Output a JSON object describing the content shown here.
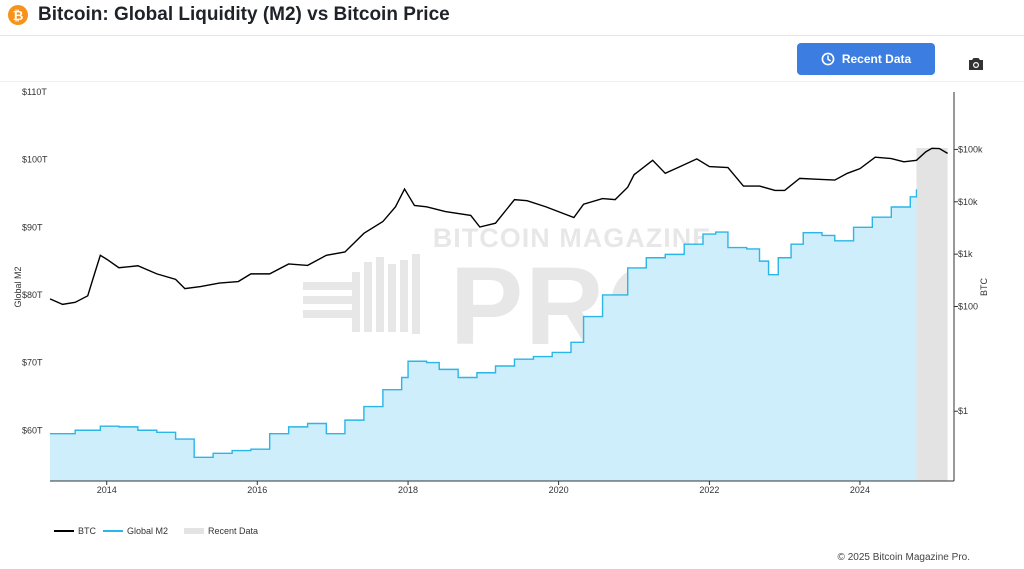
{
  "header": {
    "logo_glyph": "₿",
    "title": "Bitcoin: Global Liquidity (M2) vs Bitcoin Price"
  },
  "toolbar": {
    "recent_button_label": "Recent Data",
    "camera_icon": "camera-icon"
  },
  "footer": {
    "copyright": "© 2025 Bitcoin Magazine Pro."
  },
  "colors": {
    "btc_line": "#000000",
    "m2_line": "#2bb5e8",
    "m2_fill": "#cdeefa",
    "recent_shade": "#e3e3e3",
    "button": "#3b7de0",
    "logo": "#f7931a"
  },
  "chart_data": {
    "type": "line",
    "title": "Bitcoin: Global Liquidity (M2) vs Bitcoin Price",
    "left_axis": {
      "label": "Global M2",
      "ticks": [
        {
          "value": 60,
          "label": "$60T"
        },
        {
          "value": 70,
          "label": "$70T"
        },
        {
          "value": 80,
          "label": "$80T"
        },
        {
          "value": 90,
          "label": "$90T"
        },
        {
          "value": 100,
          "label": "$100T"
        },
        {
          "value": 110,
          "label": "$110T"
        }
      ],
      "range": [
        52.5,
        110
      ]
    },
    "right_axis": {
      "label": "BTC",
      "scale": "log",
      "ticks": [
        {
          "value": 1,
          "label": "$1"
        },
        {
          "value": 100,
          "label": "$100"
        },
        {
          "value": 1000,
          "label": "$1k"
        },
        {
          "value": 10000,
          "label": "$10k"
        },
        {
          "value": 100000,
          "label": "$100k"
        }
      ],
      "range": [
        0.0465,
        1250000
      ]
    },
    "x_axis": {
      "type": "date",
      "ticks": [
        "2014",
        "2016",
        "2018",
        "2020",
        "2022",
        "2024"
      ],
      "range": [
        "2013-04-01",
        "2025-04-01"
      ]
    },
    "recent_data_range": [
      "2024-10-01",
      "2025-03-01"
    ],
    "grid": false,
    "legend_position": "bottom-left",
    "series": [
      {
        "name": "BTC",
        "axis": "right",
        "points": [
          [
            "2013-04-01",
            140
          ],
          [
            "2013-06-01",
            110
          ],
          [
            "2013-08-01",
            120
          ],
          [
            "2013-10-01",
            160
          ],
          [
            "2013-11-01",
            400
          ],
          [
            "2013-12-01",
            950
          ],
          [
            "2014-01-01",
            800
          ],
          [
            "2014-03-01",
            550
          ],
          [
            "2014-06-01",
            600
          ],
          [
            "2014-09-01",
            420
          ],
          [
            "2014-12-01",
            330
          ],
          [
            "2015-01-15",
            220
          ],
          [
            "2015-04-01",
            240
          ],
          [
            "2015-07-01",
            280
          ],
          [
            "2015-10-01",
            300
          ],
          [
            "2015-12-01",
            420
          ],
          [
            "2016-03-01",
            420
          ],
          [
            "2016-06-01",
            650
          ],
          [
            "2016-09-01",
            610
          ],
          [
            "2016-12-01",
            950
          ],
          [
            "2017-03-01",
            1100
          ],
          [
            "2017-06-01",
            2500
          ],
          [
            "2017-09-01",
            4200
          ],
          [
            "2017-11-01",
            8000
          ],
          [
            "2017-12-15",
            17500
          ],
          [
            "2018-02-01",
            8500
          ],
          [
            "2018-04-01",
            8000
          ],
          [
            "2018-07-01",
            6500
          ],
          [
            "2018-11-01",
            5500
          ],
          [
            "2018-12-15",
            3300
          ],
          [
            "2019-03-01",
            3900
          ],
          [
            "2019-06-01",
            11000
          ],
          [
            "2019-08-01",
            10500
          ],
          [
            "2019-11-01",
            8000
          ],
          [
            "2020-03-15",
            5000
          ],
          [
            "2020-05-01",
            9000
          ],
          [
            "2020-08-01",
            11500
          ],
          [
            "2020-10-01",
            11000
          ],
          [
            "2020-12-01",
            19000
          ],
          [
            "2021-01-01",
            33000
          ],
          [
            "2021-04-01",
            62000
          ],
          [
            "2021-06-01",
            35000
          ],
          [
            "2021-08-01",
            45000
          ],
          [
            "2021-11-01",
            66000
          ],
          [
            "2022-01-01",
            47000
          ],
          [
            "2022-04-01",
            45000
          ],
          [
            "2022-06-15",
            20000
          ],
          [
            "2022-09-01",
            20000
          ],
          [
            "2022-11-15",
            16500
          ],
          [
            "2023-01-01",
            16500
          ],
          [
            "2023-03-15",
            28000
          ],
          [
            "2023-06-01",
            27000
          ],
          [
            "2023-09-01",
            26000
          ],
          [
            "2023-11-01",
            35000
          ],
          [
            "2024-01-01",
            43000
          ],
          [
            "2024-03-15",
            71000
          ],
          [
            "2024-06-01",
            67000
          ],
          [
            "2024-08-01",
            58000
          ],
          [
            "2024-10-01",
            62000
          ],
          [
            "2024-11-15",
            90000
          ],
          [
            "2024-12-15",
            105000
          ],
          [
            "2025-01-20",
            104000
          ],
          [
            "2025-03-01",
            84000
          ]
        ]
      },
      {
        "name": "Global M2",
        "axis": "left",
        "points": [
          [
            "2013-04-01",
            59.5
          ],
          [
            "2013-08-01",
            60.0
          ],
          [
            "2013-12-01",
            60.6
          ],
          [
            "2014-03-01",
            60.5
          ],
          [
            "2014-06-01",
            60.0
          ],
          [
            "2014-09-01",
            59.7
          ],
          [
            "2014-12-01",
            58.7
          ],
          [
            "2015-03-01",
            56.0
          ],
          [
            "2015-06-01",
            56.6
          ],
          [
            "2015-09-01",
            57.0
          ],
          [
            "2015-12-01",
            57.2
          ],
          [
            "2016-03-01",
            59.5
          ],
          [
            "2016-06-01",
            60.5
          ],
          [
            "2016-09-01",
            61.0
          ],
          [
            "2016-12-01",
            59.5
          ],
          [
            "2017-03-01",
            61.5
          ],
          [
            "2017-06-01",
            63.5
          ],
          [
            "2017-09-01",
            66.0
          ],
          [
            "2017-12-01",
            67.8
          ],
          [
            "2018-01-01",
            70.2
          ],
          [
            "2018-04-01",
            70.0
          ],
          [
            "2018-06-01",
            69.0
          ],
          [
            "2018-09-01",
            67.8
          ],
          [
            "2018-12-01",
            68.5
          ],
          [
            "2019-03-01",
            69.5
          ],
          [
            "2019-06-01",
            70.5
          ],
          [
            "2019-09-01",
            70.9
          ],
          [
            "2019-12-01",
            71.5
          ],
          [
            "2020-03-01",
            73.0
          ],
          [
            "2020-05-01",
            76.8
          ],
          [
            "2020-08-01",
            80.0
          ],
          [
            "2020-12-01",
            84.0
          ],
          [
            "2021-03-01",
            85.5
          ],
          [
            "2021-06-01",
            86.0
          ],
          [
            "2021-09-01",
            87.5
          ],
          [
            "2021-12-01",
            89.0
          ],
          [
            "2022-02-01",
            89.3
          ],
          [
            "2022-04-01",
            87.0
          ],
          [
            "2022-07-01",
            86.8
          ],
          [
            "2022-09-01",
            85.0
          ],
          [
            "2022-10-15",
            83.0
          ],
          [
            "2022-12-01",
            85.5
          ],
          [
            "2023-02-01",
            87.5
          ],
          [
            "2023-04-01",
            89.2
          ],
          [
            "2023-07-01",
            88.8
          ],
          [
            "2023-09-01",
            88.0
          ],
          [
            "2023-12-01",
            90.0
          ],
          [
            "2024-03-01",
            91.5
          ],
          [
            "2024-06-01",
            93.0
          ],
          [
            "2024-09-01",
            94.5
          ],
          [
            "2024-10-01",
            95.6
          ]
        ]
      },
      {
        "name": "Recent Data",
        "type": "band"
      }
    ]
  }
}
